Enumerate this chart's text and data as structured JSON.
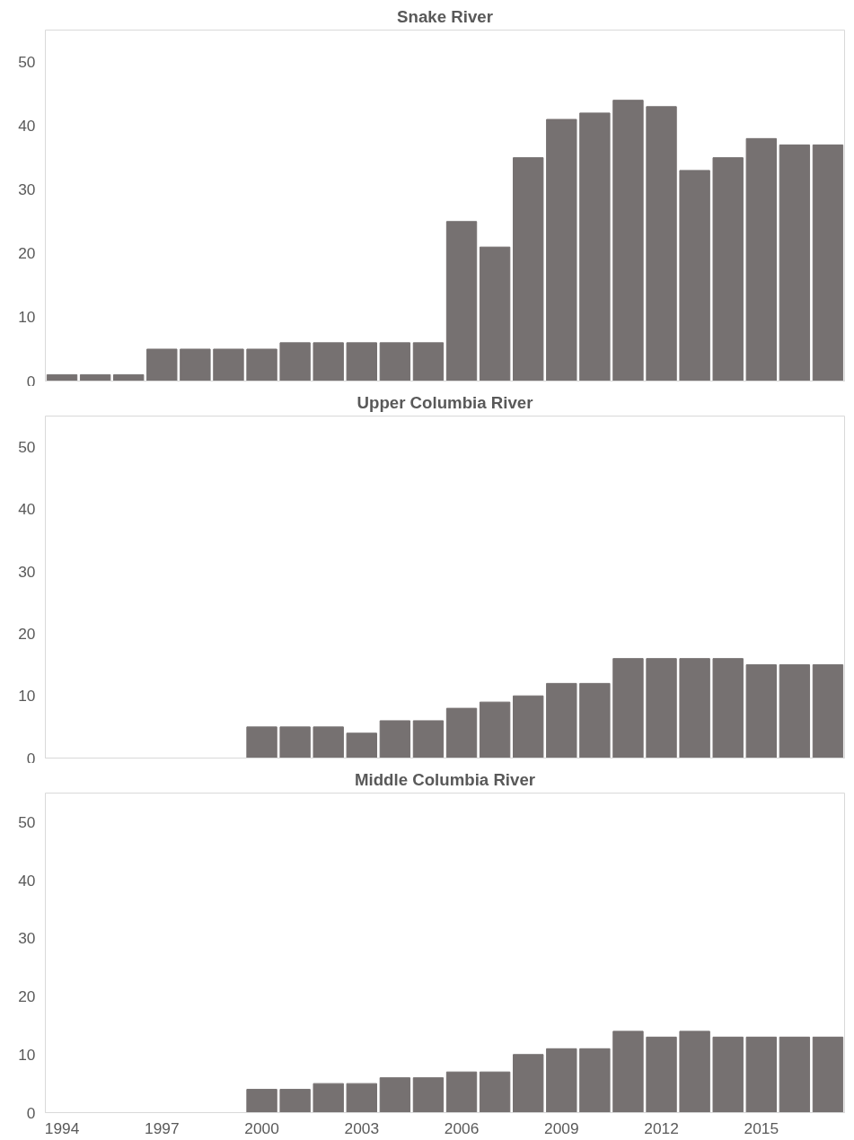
{
  "chart_data": [
    {
      "type": "bar",
      "title": "Snake River",
      "categories": [
        "1994",
        null,
        null,
        "1997",
        null,
        null,
        "2000",
        null,
        null,
        "2003",
        null,
        null,
        "2006",
        null,
        null,
        "2009",
        null,
        null,
        "2012",
        null,
        null,
        "2015",
        null,
        null
      ],
      "values": [
        1,
        1,
        1,
        5,
        5,
        5,
        5,
        6,
        6,
        6,
        6,
        6,
        25,
        21,
        35,
        41,
        42,
        44,
        43,
        33,
        35,
        38,
        37,
        37
      ],
      "color": "#767171",
      "ylim": [
        0,
        55
      ],
      "yticks": [
        0,
        10,
        20,
        30,
        40,
        50
      ],
      "tick_labels": "y"
    },
    {
      "type": "bar",
      "title": "Upper Columbia River",
      "categories": [
        "1994",
        null,
        null,
        "1997",
        null,
        null,
        "2000",
        null,
        null,
        "2003",
        null,
        null,
        "2006",
        null,
        null,
        "2009",
        null,
        null,
        "2012",
        null,
        null,
        "2015",
        null,
        null
      ],
      "values": [
        null,
        null,
        null,
        null,
        null,
        null,
        5,
        5,
        5,
        4,
        6,
        6,
        8,
        9,
        10,
        12,
        12,
        16,
        16,
        16,
        16,
        15,
        15,
        15
      ],
      "color": "#767171",
      "ylim": [
        0,
        55
      ],
      "yticks": [
        0,
        10,
        20,
        30,
        40,
        50
      ],
      "tick_labels": "y"
    },
    {
      "type": "bar",
      "title": "Middle Columbia River",
      "categories": [
        "1994",
        null,
        null,
        "1997",
        null,
        null,
        "2000",
        null,
        null,
        "2003",
        null,
        null,
        "2006",
        null,
        null,
        "2009",
        null,
        null,
        "2012",
        null,
        null,
        "2015",
        null,
        null
      ],
      "values": [
        null,
        null,
        null,
        null,
        null,
        null,
        4,
        4,
        5,
        5,
        6,
        6,
        7,
        7,
        10,
        11,
        11,
        14,
        13,
        14,
        13,
        13,
        13,
        13
      ],
      "color": "#767171",
      "ylim": [
        0,
        55
      ],
      "yticks": [
        0,
        10,
        20,
        30,
        40,
        50
      ]
    }
  ]
}
